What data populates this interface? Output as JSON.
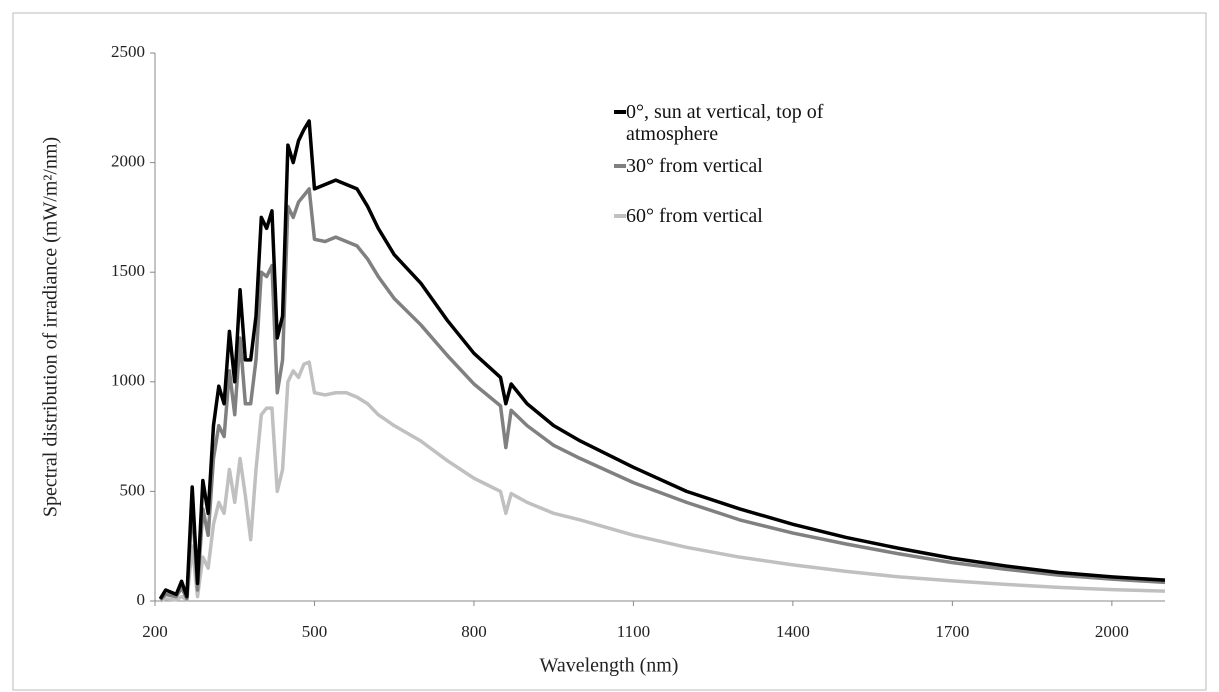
{
  "chart_data": {
    "type": "line",
    "y_label": "Spectral distribution of irradiance (mW/m²/nm)",
    "x_label": "Wavelength  (nm)",
    "xlim": [
      200,
      2100
    ],
    "xticks": [
      200,
      500,
      800,
      1100,
      1400,
      1700,
      2000
    ],
    "ylim": [
      0,
      2500
    ],
    "yticks": [
      0,
      500,
      1000,
      1500,
      2000,
      2500
    ],
    "x": [
      210,
      220,
      240,
      250,
      260,
      270,
      280,
      290,
      300,
      310,
      320,
      330,
      340,
      350,
      360,
      370,
      380,
      390,
      400,
      410,
      420,
      430,
      440,
      450,
      460,
      470,
      480,
      490,
      500,
      520,
      540,
      560,
      580,
      600,
      620,
      650,
      700,
      750,
      800,
      850,
      860,
      870,
      900,
      950,
      1000,
      1100,
      1200,
      1300,
      1400,
      1500,
      1600,
      1700,
      1800,
      1900,
      2000,
      2100
    ],
    "series": [
      {
        "name": "0°, sun at vertical, top of atmosphere",
        "color": "#000000",
        "values": [
          10,
          50,
          30,
          90,
          20,
          520,
          80,
          550,
          400,
          800,
          980,
          900,
          1230,
          1000,
          1420,
          1100,
          1100,
          1300,
          1750,
          1700,
          1780,
          1200,
          1300,
          2080,
          2000,
          2100,
          2150,
          2190,
          1880,
          1900,
          1920,
          1900,
          1880,
          1800,
          1700,
          1580,
          1450,
          1280,
          1130,
          1020,
          900,
          990,
          900,
          800,
          730,
          610,
          500,
          420,
          350,
          290,
          240,
          195,
          160,
          130,
          110,
          95
        ]
      },
      {
        "name": "30° from vertical",
        "color": "#808080",
        "values": [
          5,
          30,
          20,
          60,
          10,
          450,
          50,
          420,
          300,
          650,
          800,
          750,
          1050,
          850,
          1200,
          900,
          900,
          1100,
          1500,
          1480,
          1530,
          950,
          1100,
          1800,
          1750,
          1820,
          1850,
          1880,
          1650,
          1640,
          1660,
          1640,
          1620,
          1560,
          1480,
          1380,
          1260,
          1120,
          990,
          890,
          700,
          870,
          800,
          710,
          650,
          540,
          450,
          370,
          310,
          260,
          215,
          175,
          145,
          118,
          100,
          85
        ]
      },
      {
        "name": "60° from vertical",
        "color": "#c0c0c0",
        "values": [
          0,
          10,
          5,
          20,
          5,
          250,
          20,
          200,
          150,
          350,
          450,
          400,
          600,
          450,
          650,
          480,
          280,
          600,
          850,
          880,
          880,
          500,
          600,
          1000,
          1050,
          1020,
          1080,
          1090,
          950,
          940,
          950,
          950,
          930,
          900,
          850,
          800,
          730,
          640,
          560,
          500,
          400,
          490,
          450,
          400,
          370,
          300,
          245,
          200,
          165,
          135,
          110,
          92,
          76,
          62,
          52,
          45
        ]
      }
    ]
  }
}
